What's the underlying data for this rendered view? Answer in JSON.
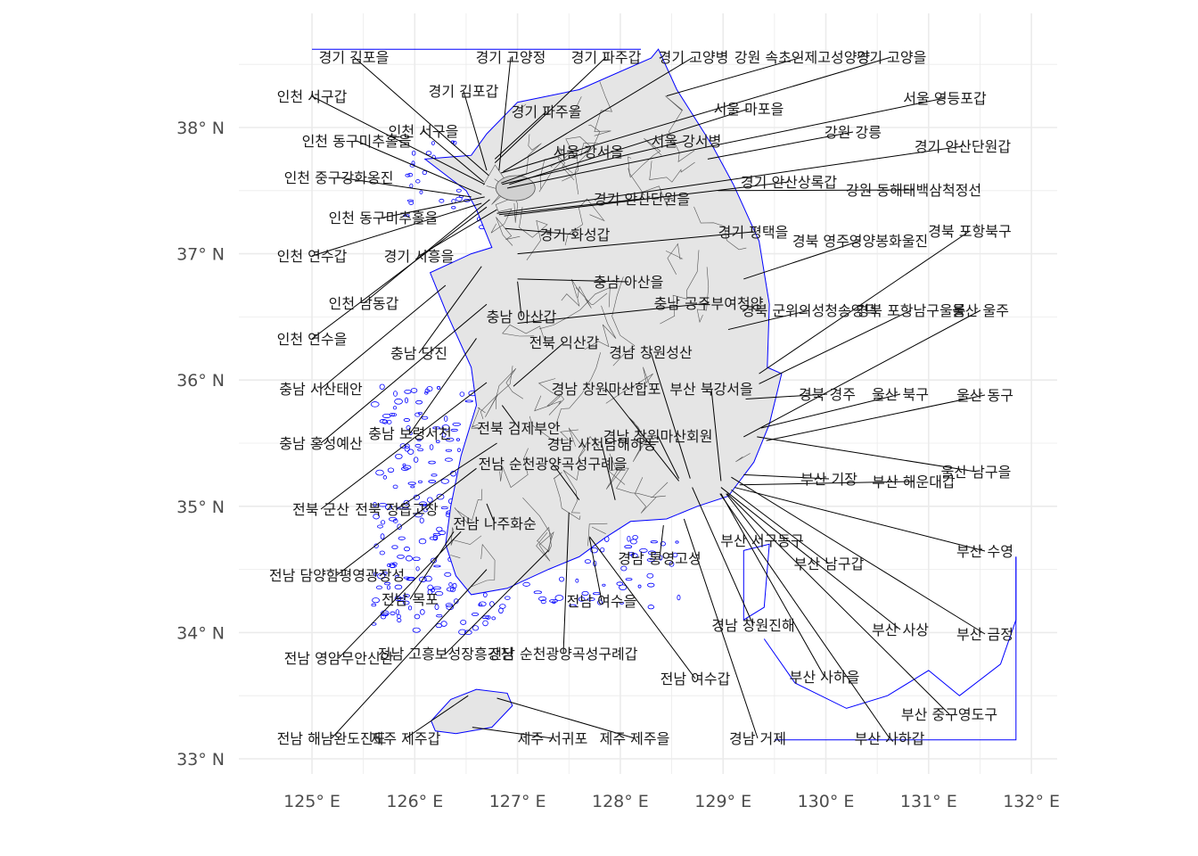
{
  "map": {
    "colors": {
      "land": "#e5e5e5",
      "district_border": "#555555",
      "coast": "#0000ff",
      "grid": "#ebebeb",
      "leader": "#000000"
    },
    "axes": {
      "lon_ticks": [
        "125° E",
        "126° E",
        "127° E",
        "128° E",
        "129° E",
        "130° E",
        "131° E",
        "132° E"
      ],
      "lat_ticks": [
        "33° N",
        "34° N",
        "35° N",
        "36° N",
        "37° N",
        "38° N"
      ],
      "lon_range": [
        124.5,
        132.3
      ],
      "lat_range": [
        32.8,
        38.7
      ]
    },
    "labels": [
      "경기 김포을",
      "경기 고양정",
      "경기 파주갑",
      "경기 고양병",
      "강원 속초인제고성양양",
      "경기 고양을",
      "인천 서구갑",
      "경기 김포갑",
      "경기 파주을",
      "서울 영등포갑",
      "서울 마포을",
      "인천 서구을",
      "인천 동구미추홀을",
      "서울 강서을",
      "서울 강서병",
      "강원 강릉",
      "경기 안산단원갑",
      "인천 중구강화옹진",
      "경기 안산상록갑",
      "강원 동해태백삼척정선",
      "경기 안산단원을",
      "인천 동구미추홀을",
      "경기 화성갑",
      "경기 평택을",
      "경북 영주영양봉화울진",
      "경북 포항북구",
      "인천 연수갑",
      "경기 시흥을",
      "충남 아산을",
      "인천 남동갑",
      "충남 공주부여청양",
      "경북 군위의성청송영덕",
      "경북 포항남구울릉",
      "울산 울주",
      "충남 아산갑",
      "인천 연수을",
      "전북 익산갑",
      "경남 창원성산",
      "충남 당진",
      "경남 창원마산합포",
      "부산 북강서을",
      "충남 서산태안",
      "경북 경주",
      "울산 북구",
      "울산 동구",
      "충남 보령서천",
      "전북 김제부안",
      "충남 홍성예산",
      "경남 사천남해하동",
      "경남 창원마산회원",
      "전남 순천광양곡성구례을",
      "울산 남구을",
      "부산 기장",
      "부산 해운대갑",
      "전북 군산",
      "전북 정읍고창",
      "전남 나주화순",
      "부산 서구동구",
      "부산 수영",
      "경남 통영고성",
      "부산 남구갑",
      "전남 담양함평영광장성",
      "전남 목포",
      "전남 여수을",
      "경남 창원진해",
      "부산 사상",
      "부산 금정",
      "전남 영암무안신안",
      "전남 고흥보성장흥강진",
      "전남 순천광양곡성구례갑",
      "전남 여수갑",
      "부산 사하을",
      "부산 중구영도구",
      "전남 해남완도진도",
      "제주 제주갑",
      "제주 서귀포",
      "제주 제주을",
      "경남 거제",
      "부산 사하갑"
    ]
  }
}
